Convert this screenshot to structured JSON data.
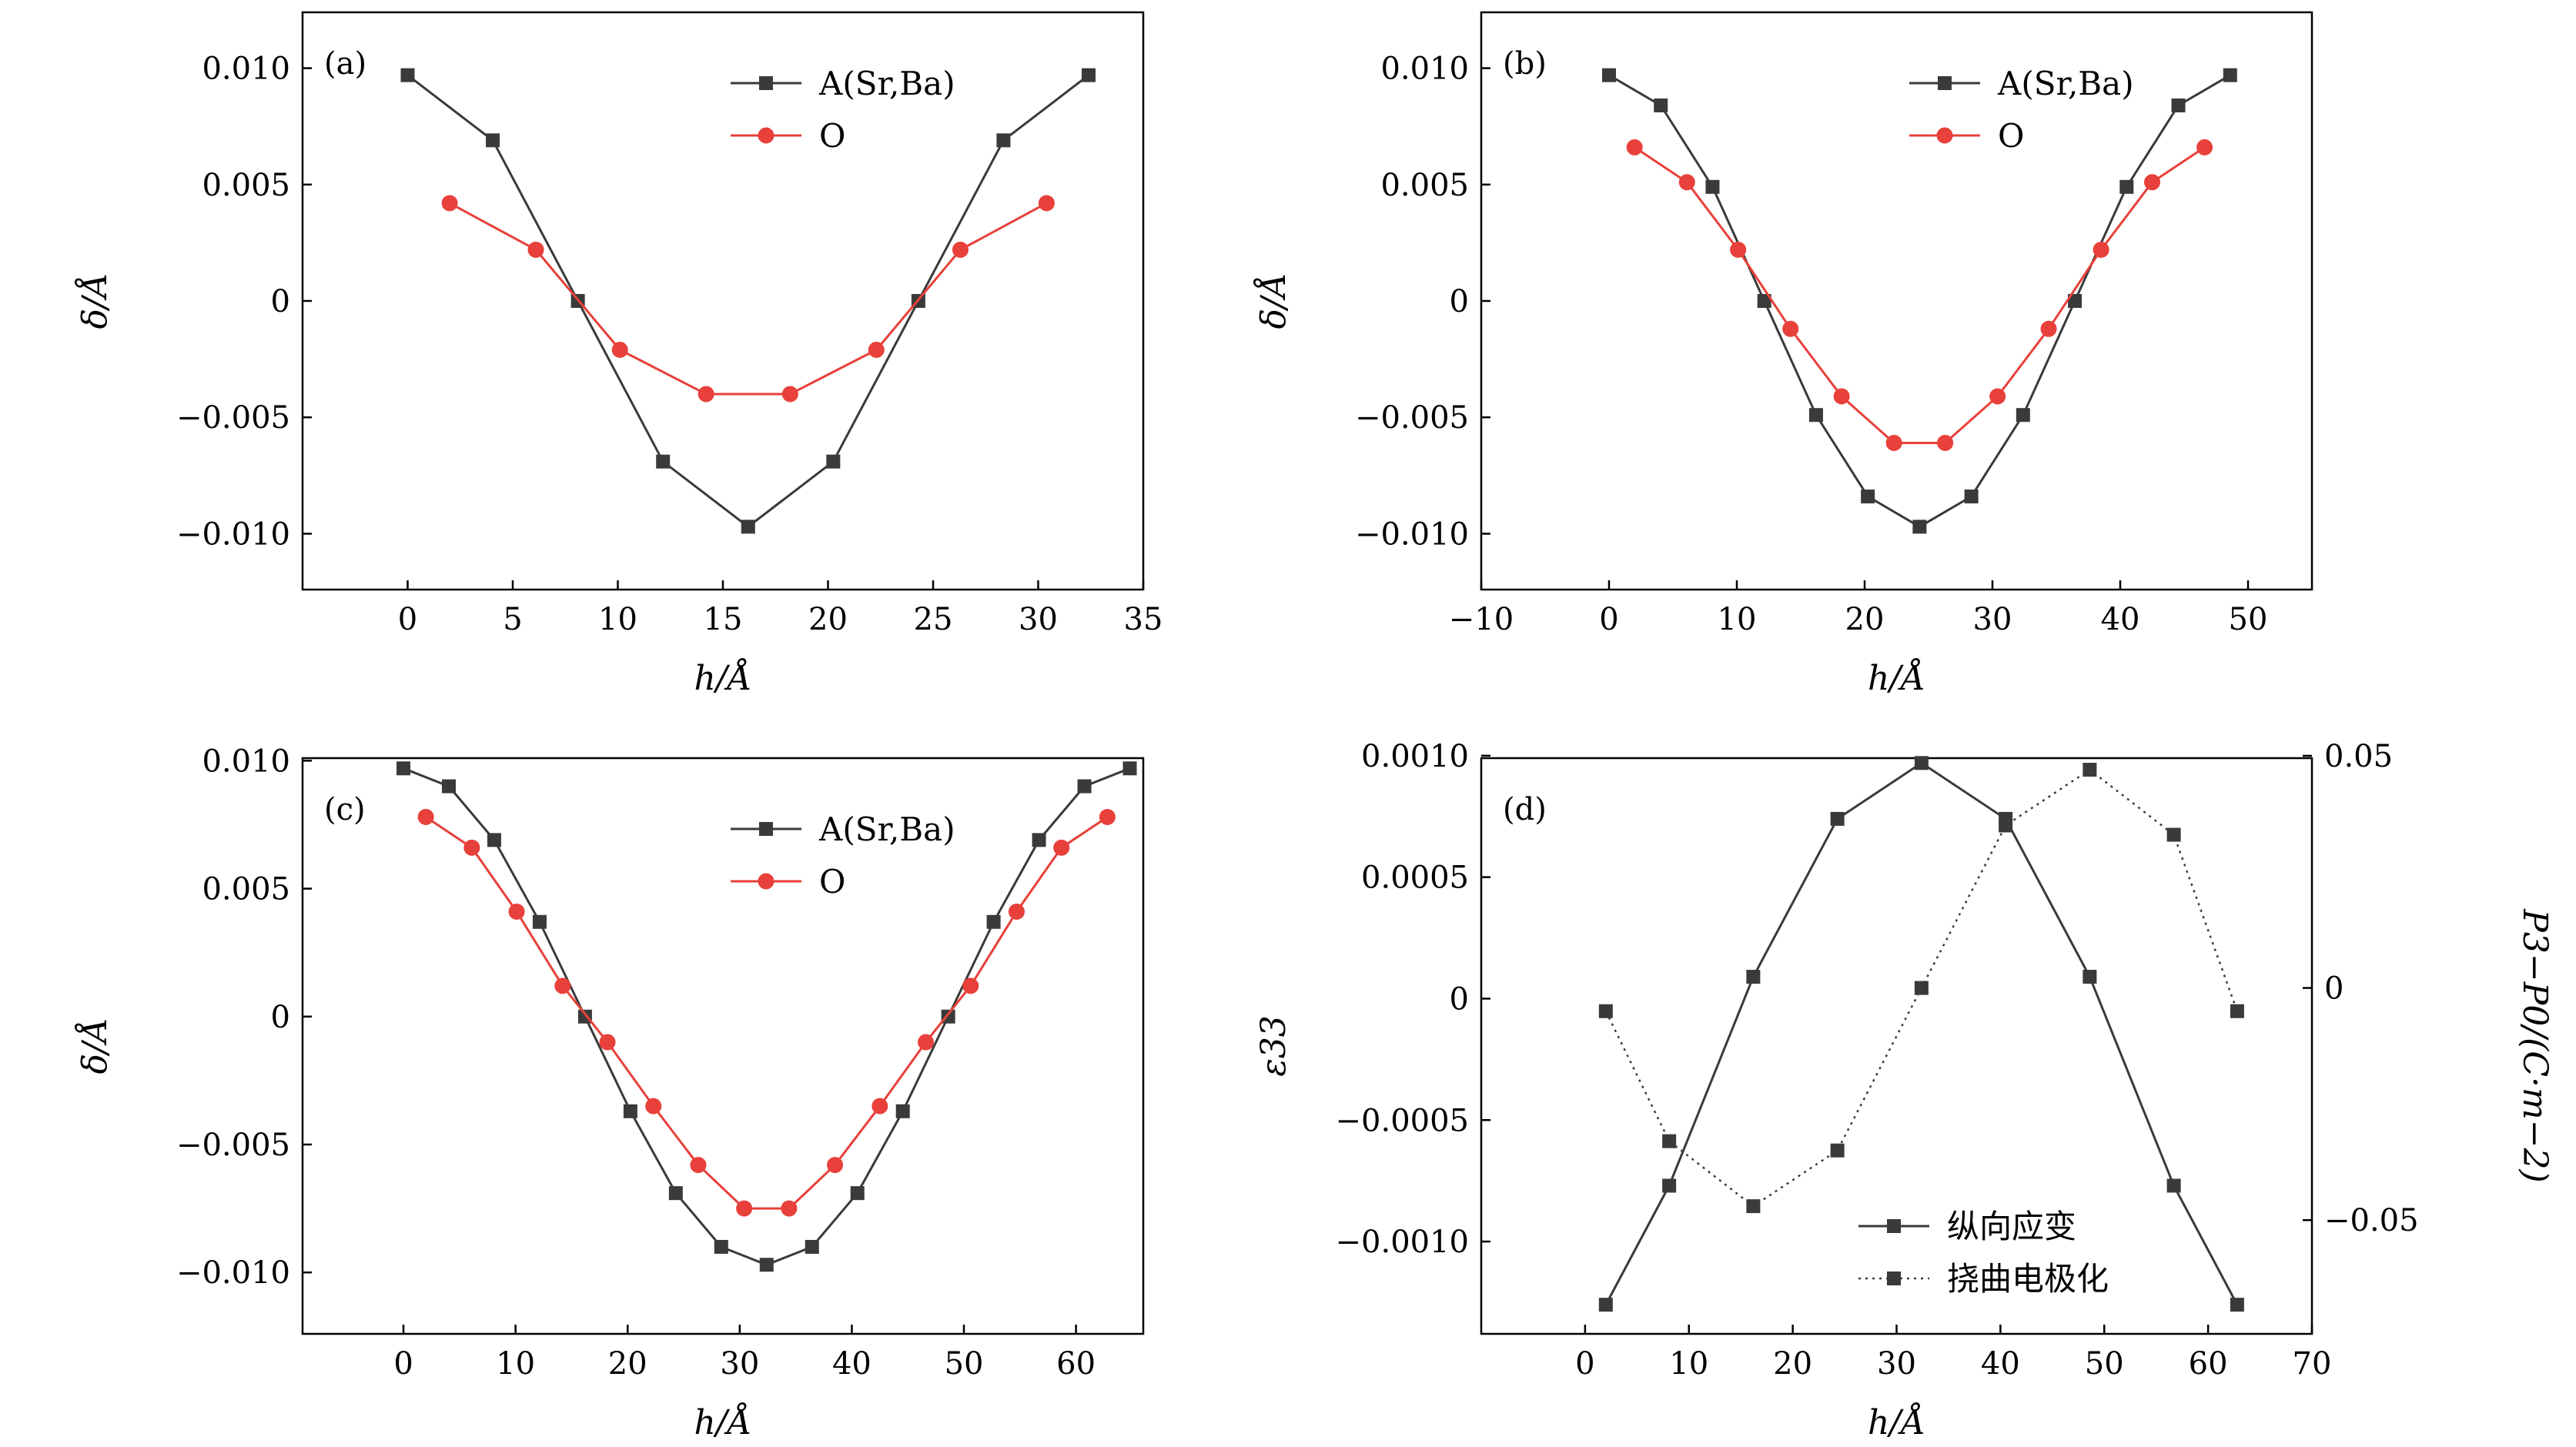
{
  "colors": {
    "black_series": "#3a3a3a",
    "red_series": "#e8403a",
    "frame": "#000000"
  },
  "chart_data": [
    {
      "panel": "(a)",
      "type": "line",
      "xlabel": "h/Å",
      "ylabel": "δ/Å",
      "xlim": [
        -5,
        35
      ],
      "ylim": [
        -0.0124,
        0.0124
      ],
      "xticks": [
        0,
        5,
        10,
        15,
        20,
        25,
        30,
        35
      ],
      "xtick_labels": [
        "0",
        "5",
        "10",
        "15",
        "20",
        "25",
        "30",
        "35"
      ],
      "yticks": [
        -0.01,
        -0.005,
        0,
        0.005,
        0.01
      ],
      "ytick_labels": [
        "−0.010",
        "−0.005",
        "0",
        "0.005",
        "0.010"
      ],
      "legend": [
        "A(Sr,Ba)",
        "O"
      ],
      "legend_position": "top-right",
      "series": [
        {
          "name": "A(Sr,Ba)",
          "marker": "square",
          "color": "#3a3a3a",
          "x": [
            0,
            4.05,
            8.1,
            12.15,
            16.2,
            20.25,
            24.3,
            28.35,
            32.4
          ],
          "y": [
            0.0097,
            0.0069,
            0.0,
            -0.0069,
            -0.0097,
            -0.0069,
            0.0,
            0.0069,
            0.0097
          ]
        },
        {
          "name": "O",
          "marker": "circle",
          "color": "#e8403a",
          "x": [
            2.0,
            6.1,
            10.1,
            14.2,
            18.2,
            22.3,
            26.3,
            30.4
          ],
          "y": [
            0.0042,
            0.0022,
            -0.0021,
            -0.004,
            -0.004,
            -0.0021,
            0.0022,
            0.0042
          ]
        }
      ]
    },
    {
      "panel": "(b)",
      "type": "line",
      "xlabel": "h/Å",
      "ylabel": "δ/Å",
      "xlim": [
        -10,
        55
      ],
      "ylim": [
        -0.0124,
        0.0124
      ],
      "xticks": [
        -10,
        0,
        10,
        20,
        30,
        40,
        50
      ],
      "xtick_labels": [
        "−10",
        "0",
        "10",
        "20",
        "30",
        "40",
        "50"
      ],
      "yticks": [
        -0.01,
        -0.005,
        0,
        0.005,
        0.01
      ],
      "ytick_labels": [
        "−0.010",
        "−0.005",
        "0",
        "0.005",
        "0.010"
      ],
      "legend": [
        "A(Sr,Ba)",
        "O"
      ],
      "legend_position": "top-right",
      "series": [
        {
          "name": "A(Sr,Ba)",
          "marker": "square",
          "color": "#3a3a3a",
          "x": [
            0,
            4.05,
            8.1,
            12.15,
            16.2,
            20.25,
            24.3,
            28.35,
            32.4,
            36.45,
            40.5,
            44.55,
            48.6
          ],
          "y": [
            0.0097,
            0.0084,
            0.0049,
            0.0,
            -0.0049,
            -0.0084,
            -0.0097,
            -0.0084,
            -0.0049,
            0.0,
            0.0049,
            0.0084,
            0.0097
          ]
        },
        {
          "name": "O",
          "marker": "circle",
          "color": "#e8403a",
          "x": [
            2.0,
            6.1,
            10.1,
            14.2,
            18.2,
            22.3,
            26.3,
            30.4,
            34.4,
            38.5,
            42.5,
            46.6
          ],
          "y": [
            0.0066,
            0.0051,
            0.0022,
            -0.0012,
            -0.0041,
            -0.0061,
            -0.0061,
            -0.0041,
            -0.0012,
            0.0022,
            0.0051,
            0.0066
          ]
        }
      ]
    },
    {
      "panel": "(c)",
      "type": "line",
      "xlabel": "h/Å",
      "ylabel": "δ/Å",
      "xlim": [
        -9,
        66
      ],
      "ylim": [
        -0.0124,
        0.0101
      ],
      "xticks": [
        0,
        10,
        20,
        30,
        40,
        50,
        60
      ],
      "xtick_labels": [
        "0",
        "10",
        "20",
        "30",
        "40",
        "50",
        "60"
      ],
      "yticks": [
        -0.01,
        -0.005,
        0,
        0.005,
        0.01
      ],
      "ytick_labels": [
        "−0.010",
        "−0.005",
        "0",
        "0.005",
        "0.010"
      ],
      "legend": [
        "A(Sr,Ba)",
        "O"
      ],
      "legend_position": "top-right",
      "series": [
        {
          "name": "A(Sr,Ba)",
          "marker": "square",
          "color": "#3a3a3a",
          "x": [
            0,
            4.05,
            8.1,
            12.15,
            16.2,
            20.25,
            24.3,
            28.35,
            32.4,
            36.45,
            40.5,
            44.55,
            48.6,
            52.65,
            56.7,
            60.75,
            64.8
          ],
          "y": [
            0.0097,
            0.009,
            0.0069,
            0.0037,
            0.0,
            -0.0037,
            -0.0069,
            -0.009,
            -0.0097,
            -0.009,
            -0.0069,
            -0.0037,
            0.0,
            0.0037,
            0.0069,
            0.009,
            0.0097
          ]
        },
        {
          "name": "O",
          "marker": "circle",
          "color": "#e8403a",
          "x": [
            2.0,
            6.1,
            10.1,
            14.2,
            18.2,
            22.3,
            26.3,
            30.4,
            34.4,
            38.5,
            42.5,
            46.6,
            50.6,
            54.7,
            58.7,
            62.8
          ],
          "y": [
            0.0078,
            0.0066,
            0.0041,
            0.0012,
            -0.001,
            -0.0035,
            -0.0058,
            -0.0075,
            -0.0075,
            -0.0058,
            -0.0035,
            -0.001,
            0.0012,
            0.0041,
            0.0066,
            0.0078
          ]
        }
      ]
    },
    {
      "panel": "(d)",
      "type": "line",
      "xlabel": "h/Å",
      "ylabel": "ε33",
      "y2label": "P3−P0/(C·m−2)",
      "xlim": [
        -10,
        70
      ],
      "ylim": [
        -0.00138,
        0.00099
      ],
      "y2lim": [
        -0.0745,
        0.0495
      ],
      "xticks": [
        0,
        10,
        20,
        30,
        40,
        50,
        60,
        70
      ],
      "xtick_labels": [
        "0",
        "10",
        "20",
        "30",
        "40",
        "50",
        "60",
        "70"
      ],
      "yticks": [
        -0.001,
        -0.0005,
        0,
        0.0005,
        0.001
      ],
      "ytick_labels": [
        "−0.0010",
        "−0.0005",
        "0",
        "0.0005",
        "0.0010"
      ],
      "y2ticks": [
        -0.05,
        0,
        0.05
      ],
      "y2tick_labels": [
        "−0.05",
        "0",
        "0.05"
      ],
      "legend": [
        "纵向应变",
        "挠曲电极化"
      ],
      "legend_position": "bottom-right",
      "series": [
        {
          "name": "纵向应变",
          "axis": "left",
          "line": "solid",
          "marker": "square",
          "color": "#3a3a3a",
          "x": [
            2.0,
            8.1,
            16.2,
            24.3,
            32.4,
            40.5,
            48.6,
            56.7,
            62.8
          ],
          "y": [
            -0.00126,
            -0.00077,
            9e-05,
            0.00074,
            0.00097,
            0.00074,
            9e-05,
            -0.00077,
            -0.00126
          ]
        },
        {
          "name": "挠曲电极化",
          "axis": "right",
          "line": "dotted",
          "marker": "square",
          "color": "#3a3a3a",
          "x": [
            2.0,
            8.1,
            16.2,
            24.3,
            32.4,
            40.5,
            48.6,
            56.7,
            62.8
          ],
          "y": [
            -0.005,
            -0.033,
            -0.047,
            -0.035,
            0.0,
            0.035,
            0.047,
            0.033,
            -0.005
          ]
        }
      ]
    }
  ]
}
